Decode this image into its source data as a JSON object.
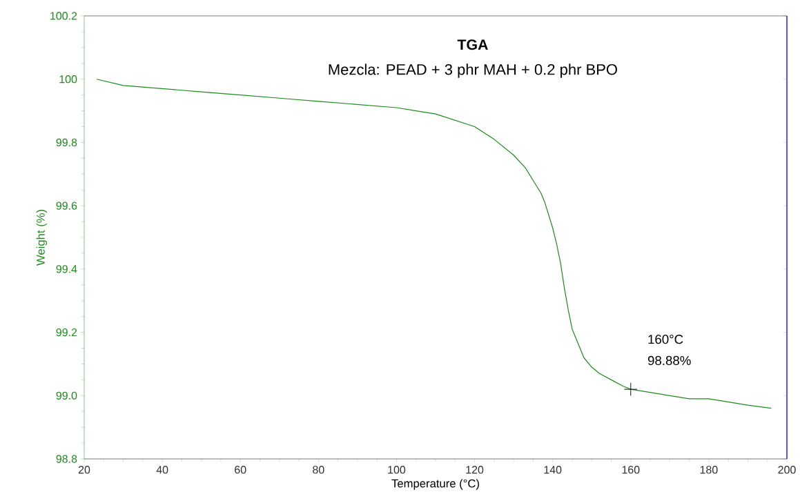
{
  "chart_data": {
    "type": "line",
    "title": "TGA",
    "subtitle": "Mezcla:  PEAD  + 3 phr MAH + 0.2 phr BPO",
    "xlabel": "Temperature (°C)",
    "ylabel": "Weight (%)",
    "annotations": [
      "160°C",
      "98.88%"
    ],
    "xlim": [
      20,
      200
    ],
    "ylim": [
      98.8,
      100.2
    ],
    "xticks": [
      20,
      40,
      60,
      80,
      100,
      120,
      140,
      160,
      180,
      200
    ],
    "yticks": [
      98.8,
      {
        "value": 99,
        "label": "99.0"
      },
      99.2,
      99.4,
      99.6,
      99.8,
      100,
      100.2
    ],
    "series": [
      {
        "color": "#1a8c1a",
        "x": [
          23.2,
          30,
          40,
          50,
          60,
          70,
          80,
          90,
          100,
          105,
          110,
          115,
          120,
          125,
          130,
          133,
          135,
          137,
          138,
          139,
          140,
          141,
          142,
          143,
          144,
          145,
          146,
          147,
          148,
          150,
          152,
          155,
          158,
          160,
          165,
          170,
          175,
          180,
          185,
          190,
          196
        ],
        "values": [
          100.0,
          99.98,
          99.97,
          99.96,
          99.95,
          99.94,
          99.93,
          99.92,
          99.91,
          99.9,
          99.89,
          99.87,
          99.85,
          99.81,
          99.76,
          99.72,
          99.68,
          99.64,
          99.61,
          99.57,
          99.53,
          99.48,
          99.42,
          99.34,
          99.27,
          99.21,
          99.18,
          99.15,
          99.12,
          99.09,
          99.07,
          99.05,
          99.03,
          99.02,
          99.01,
          99.0,
          98.99,
          98.99,
          98.98,
          98.97,
          98.96
        ]
      },
      {
        "type": "scatter",
        "color": "#000000",
        "marker": "cross",
        "x": [
          160
        ],
        "values": [
          99.02
        ]
      }
    ]
  }
}
